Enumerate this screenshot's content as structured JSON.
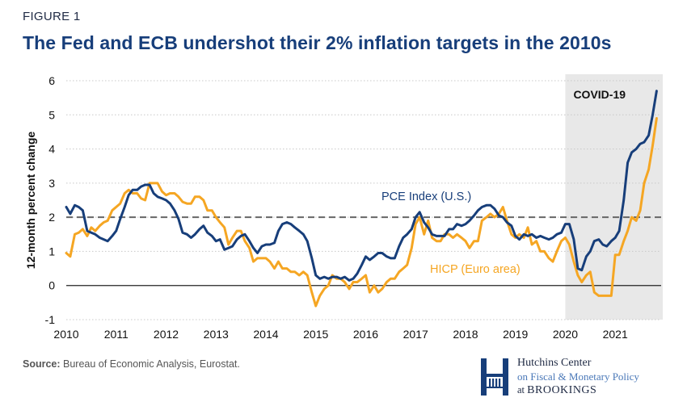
{
  "figure_label": "FIGURE 1",
  "title": "The Fed and ECB undershot their 2% inflation targets in the 2010s",
  "source_label": "Source:",
  "source_text": " Bureau of Economic Analysis, Eurostat.",
  "brand": {
    "line1": "Hutchins Center",
    "line2": "on Fiscal & Monetary Policy",
    "line3_prefix": "at ",
    "line3_name": "BROOKINGS"
  },
  "colors": {
    "pce": "#173e7a",
    "hicp": "#f5a623",
    "target": "#666666",
    "shade": "#e8e8e8"
  },
  "chart_data": {
    "type": "line",
    "ylabel": "12-month percent change",
    "xlabel": "",
    "ylim": [
      -1,
      6
    ],
    "xlim": [
      2010,
      2021.92
    ],
    "yticks": [
      -1,
      0,
      1,
      2,
      3,
      4,
      5,
      6
    ],
    "xticks": [
      2010,
      2011,
      2012,
      2013,
      2014,
      2015,
      2016,
      2017,
      2018,
      2019,
      2020,
      2021
    ],
    "grid": "horizontal dotted",
    "reference_line": {
      "y": 2,
      "style": "dashed"
    },
    "shaded_region": {
      "x_start": 2020.0,
      "x_end": 2021.92,
      "label": "COVID-19"
    },
    "series": [
      {
        "name": "PCE Index (U.S.)",
        "points": [
          [
            2010.0,
            2.3
          ],
          [
            2010.08,
            2.1
          ],
          [
            2010.17,
            2.35
          ],
          [
            2010.25,
            2.3
          ],
          [
            2010.33,
            2.2
          ],
          [
            2010.42,
            1.6
          ],
          [
            2010.5,
            1.55
          ],
          [
            2010.58,
            1.5
          ],
          [
            2010.67,
            1.4
          ],
          [
            2010.75,
            1.35
          ],
          [
            2010.83,
            1.3
          ],
          [
            2010.92,
            1.45
          ],
          [
            2011.0,
            1.6
          ],
          [
            2011.08,
            1.95
          ],
          [
            2011.17,
            2.3
          ],
          [
            2011.25,
            2.65
          ],
          [
            2011.33,
            2.8
          ],
          [
            2011.42,
            2.8
          ],
          [
            2011.5,
            2.9
          ],
          [
            2011.58,
            2.95
          ],
          [
            2011.67,
            2.95
          ],
          [
            2011.75,
            2.7
          ],
          [
            2011.83,
            2.6
          ],
          [
            2011.92,
            2.55
          ],
          [
            2012.0,
            2.5
          ],
          [
            2012.08,
            2.4
          ],
          [
            2012.17,
            2.2
          ],
          [
            2012.25,
            1.95
          ],
          [
            2012.33,
            1.55
          ],
          [
            2012.42,
            1.5
          ],
          [
            2012.5,
            1.4
          ],
          [
            2012.58,
            1.5
          ],
          [
            2012.67,
            1.65
          ],
          [
            2012.75,
            1.75
          ],
          [
            2012.83,
            1.55
          ],
          [
            2012.92,
            1.45
          ],
          [
            2013.0,
            1.3
          ],
          [
            2013.08,
            1.35
          ],
          [
            2013.17,
            1.05
          ],
          [
            2013.25,
            1.1
          ],
          [
            2013.33,
            1.15
          ],
          [
            2013.42,
            1.35
          ],
          [
            2013.5,
            1.45
          ],
          [
            2013.58,
            1.5
          ],
          [
            2013.67,
            1.3
          ],
          [
            2013.75,
            1.1
          ],
          [
            2013.83,
            0.95
          ],
          [
            2013.92,
            1.15
          ],
          [
            2014.0,
            1.2
          ],
          [
            2014.08,
            1.2
          ],
          [
            2014.17,
            1.25
          ],
          [
            2014.25,
            1.6
          ],
          [
            2014.33,
            1.8
          ],
          [
            2014.42,
            1.85
          ],
          [
            2014.5,
            1.8
          ],
          [
            2014.58,
            1.7
          ],
          [
            2014.67,
            1.6
          ],
          [
            2014.75,
            1.5
          ],
          [
            2014.83,
            1.3
          ],
          [
            2014.92,
            0.8
          ],
          [
            2015.0,
            0.3
          ],
          [
            2015.08,
            0.2
          ],
          [
            2015.17,
            0.25
          ],
          [
            2015.25,
            0.2
          ],
          [
            2015.33,
            0.25
          ],
          [
            2015.42,
            0.25
          ],
          [
            2015.5,
            0.2
          ],
          [
            2015.58,
            0.25
          ],
          [
            2015.67,
            0.15
          ],
          [
            2015.75,
            0.2
          ],
          [
            2015.83,
            0.35
          ],
          [
            2015.92,
            0.6
          ],
          [
            2016.0,
            0.85
          ],
          [
            2016.08,
            0.75
          ],
          [
            2016.17,
            0.85
          ],
          [
            2016.25,
            0.95
          ],
          [
            2016.33,
            0.95
          ],
          [
            2016.42,
            0.85
          ],
          [
            2016.5,
            0.8
          ],
          [
            2016.58,
            0.8
          ],
          [
            2016.67,
            1.15
          ],
          [
            2016.75,
            1.4
          ],
          [
            2016.83,
            1.5
          ],
          [
            2016.92,
            1.65
          ],
          [
            2017.0,
            2.0
          ],
          [
            2017.08,
            2.15
          ],
          [
            2017.17,
            1.85
          ],
          [
            2017.25,
            1.7
          ],
          [
            2017.33,
            1.5
          ],
          [
            2017.42,
            1.45
          ],
          [
            2017.5,
            1.45
          ],
          [
            2017.58,
            1.45
          ],
          [
            2017.67,
            1.65
          ],
          [
            2017.75,
            1.65
          ],
          [
            2017.83,
            1.8
          ],
          [
            2017.92,
            1.75
          ],
          [
            2018.0,
            1.8
          ],
          [
            2018.08,
            1.9
          ],
          [
            2018.17,
            2.05
          ],
          [
            2018.25,
            2.2
          ],
          [
            2018.33,
            2.3
          ],
          [
            2018.42,
            2.35
          ],
          [
            2018.5,
            2.35
          ],
          [
            2018.58,
            2.25
          ],
          [
            2018.67,
            2.05
          ],
          [
            2018.75,
            2.0
          ],
          [
            2018.83,
            1.85
          ],
          [
            2018.92,
            1.75
          ],
          [
            2019.0,
            1.45
          ],
          [
            2019.08,
            1.35
          ],
          [
            2019.17,
            1.5
          ],
          [
            2019.25,
            1.45
          ],
          [
            2019.33,
            1.5
          ],
          [
            2019.42,
            1.4
          ],
          [
            2019.5,
            1.45
          ],
          [
            2019.58,
            1.4
          ],
          [
            2019.67,
            1.35
          ],
          [
            2019.75,
            1.4
          ],
          [
            2019.83,
            1.5
          ],
          [
            2019.92,
            1.55
          ],
          [
            2020.0,
            1.8
          ],
          [
            2020.08,
            1.8
          ],
          [
            2020.17,
            1.35
          ],
          [
            2020.25,
            0.5
          ],
          [
            2020.33,
            0.45
          ],
          [
            2020.42,
            0.85
          ],
          [
            2020.5,
            1.0
          ],
          [
            2020.58,
            1.3
          ],
          [
            2020.67,
            1.35
          ],
          [
            2020.75,
            1.2
          ],
          [
            2020.83,
            1.15
          ],
          [
            2020.92,
            1.3
          ],
          [
            2021.0,
            1.4
          ],
          [
            2021.08,
            1.6
          ],
          [
            2021.17,
            2.5
          ],
          [
            2021.25,
            3.6
          ],
          [
            2021.33,
            3.9
          ],
          [
            2021.42,
            4.0
          ],
          [
            2021.5,
            4.15
          ],
          [
            2021.58,
            4.2
          ],
          [
            2021.67,
            4.4
          ],
          [
            2021.75,
            5.0
          ],
          [
            2021.83,
            5.7
          ]
        ]
      },
      {
        "name": "HICP (Euro area)",
        "points": [
          [
            2010.0,
            0.95
          ],
          [
            2010.08,
            0.85
          ],
          [
            2010.17,
            1.5
          ],
          [
            2010.25,
            1.55
          ],
          [
            2010.33,
            1.65
          ],
          [
            2010.42,
            1.45
          ],
          [
            2010.5,
            1.7
          ],
          [
            2010.58,
            1.6
          ],
          [
            2010.67,
            1.75
          ],
          [
            2010.75,
            1.85
          ],
          [
            2010.83,
            1.9
          ],
          [
            2010.92,
            2.2
          ],
          [
            2011.0,
            2.3
          ],
          [
            2011.08,
            2.4
          ],
          [
            2011.17,
            2.7
          ],
          [
            2011.25,
            2.8
          ],
          [
            2011.33,
            2.7
          ],
          [
            2011.42,
            2.7
          ],
          [
            2011.5,
            2.55
          ],
          [
            2011.58,
            2.5
          ],
          [
            2011.67,
            3.0
          ],
          [
            2011.75,
            3.0
          ],
          [
            2011.83,
            3.0
          ],
          [
            2011.92,
            2.75
          ],
          [
            2012.0,
            2.65
          ],
          [
            2012.08,
            2.7
          ],
          [
            2012.17,
            2.7
          ],
          [
            2012.25,
            2.6
          ],
          [
            2012.33,
            2.45
          ],
          [
            2012.42,
            2.4
          ],
          [
            2012.5,
            2.4
          ],
          [
            2012.58,
            2.6
          ],
          [
            2012.67,
            2.6
          ],
          [
            2012.75,
            2.5
          ],
          [
            2012.83,
            2.2
          ],
          [
            2012.92,
            2.2
          ],
          [
            2013.0,
            2.0
          ],
          [
            2013.08,
            1.85
          ],
          [
            2013.17,
            1.7
          ],
          [
            2013.25,
            1.2
          ],
          [
            2013.33,
            1.4
          ],
          [
            2013.42,
            1.6
          ],
          [
            2013.5,
            1.6
          ],
          [
            2013.58,
            1.3
          ],
          [
            2013.67,
            1.1
          ],
          [
            2013.75,
            0.7
          ],
          [
            2013.83,
            0.8
          ],
          [
            2013.92,
            0.8
          ],
          [
            2014.0,
            0.8
          ],
          [
            2014.08,
            0.7
          ],
          [
            2014.17,
            0.5
          ],
          [
            2014.25,
            0.7
          ],
          [
            2014.33,
            0.5
          ],
          [
            2014.42,
            0.5
          ],
          [
            2014.5,
            0.4
          ],
          [
            2014.58,
            0.4
          ],
          [
            2014.67,
            0.3
          ],
          [
            2014.75,
            0.4
          ],
          [
            2014.83,
            0.3
          ],
          [
            2014.92,
            -0.2
          ],
          [
            2015.0,
            -0.6
          ],
          [
            2015.08,
            -0.3
          ],
          [
            2015.17,
            -0.1
          ],
          [
            2015.25,
            0.0
          ],
          [
            2015.33,
            0.3
          ],
          [
            2015.42,
            0.2
          ],
          [
            2015.5,
            0.2
          ],
          [
            2015.58,
            0.1
          ],
          [
            2015.67,
            -0.1
          ],
          [
            2015.75,
            0.1
          ],
          [
            2015.83,
            0.1
          ],
          [
            2015.92,
            0.2
          ],
          [
            2016.0,
            0.3
          ],
          [
            2016.08,
            -0.2
          ],
          [
            2016.17,
            0.0
          ],
          [
            2016.25,
            -0.2
          ],
          [
            2016.33,
            -0.1
          ],
          [
            2016.42,
            0.1
          ],
          [
            2016.5,
            0.2
          ],
          [
            2016.58,
            0.2
          ],
          [
            2016.67,
            0.4
          ],
          [
            2016.75,
            0.5
          ],
          [
            2016.83,
            0.6
          ],
          [
            2016.92,
            1.1
          ],
          [
            2017.0,
            1.8
          ],
          [
            2017.08,
            2.0
          ],
          [
            2017.17,
            1.5
          ],
          [
            2017.25,
            1.9
          ],
          [
            2017.33,
            1.4
          ],
          [
            2017.42,
            1.3
          ],
          [
            2017.5,
            1.3
          ],
          [
            2017.58,
            1.5
          ],
          [
            2017.67,
            1.5
          ],
          [
            2017.75,
            1.4
          ],
          [
            2017.83,
            1.5
          ],
          [
            2017.92,
            1.4
          ],
          [
            2018.0,
            1.3
          ],
          [
            2018.08,
            1.1
          ],
          [
            2018.17,
            1.3
          ],
          [
            2018.25,
            1.3
          ],
          [
            2018.33,
            1.9
          ],
          [
            2018.42,
            2.0
          ],
          [
            2018.5,
            2.1
          ],
          [
            2018.58,
            2.0
          ],
          [
            2018.67,
            2.1
          ],
          [
            2018.75,
            2.3
          ],
          [
            2018.83,
            1.9
          ],
          [
            2018.92,
            1.5
          ],
          [
            2019.0,
            1.4
          ],
          [
            2019.08,
            1.5
          ],
          [
            2019.17,
            1.4
          ],
          [
            2019.25,
            1.7
          ],
          [
            2019.33,
            1.2
          ],
          [
            2019.42,
            1.3
          ],
          [
            2019.5,
            1.0
          ],
          [
            2019.58,
            1.0
          ],
          [
            2019.67,
            0.8
          ],
          [
            2019.75,
            0.7
          ],
          [
            2019.83,
            1.0
          ],
          [
            2019.92,
            1.3
          ],
          [
            2020.0,
            1.4
          ],
          [
            2020.08,
            1.2
          ],
          [
            2020.17,
            0.7
          ],
          [
            2020.25,
            0.3
          ],
          [
            2020.33,
            0.1
          ],
          [
            2020.42,
            0.3
          ],
          [
            2020.5,
            0.4
          ],
          [
            2020.58,
            -0.2
          ],
          [
            2020.67,
            -0.3
          ],
          [
            2020.75,
            -0.3
          ],
          [
            2020.83,
            -0.3
          ],
          [
            2020.92,
            -0.3
          ],
          [
            2021.0,
            0.9
          ],
          [
            2021.08,
            0.9
          ],
          [
            2021.17,
            1.3
          ],
          [
            2021.25,
            1.6
          ],
          [
            2021.33,
            2.0
          ],
          [
            2021.42,
            1.9
          ],
          [
            2021.5,
            2.2
          ],
          [
            2021.58,
            3.0
          ],
          [
            2021.67,
            3.4
          ],
          [
            2021.75,
            4.1
          ],
          [
            2021.83,
            4.9
          ]
        ]
      }
    ],
    "annotations": [
      {
        "text": "PCE Index (U.S.)",
        "series": 0
      },
      {
        "text": "HICP (Euro area)",
        "series": 1
      },
      {
        "text": "COVID-19",
        "series": null
      }
    ]
  }
}
